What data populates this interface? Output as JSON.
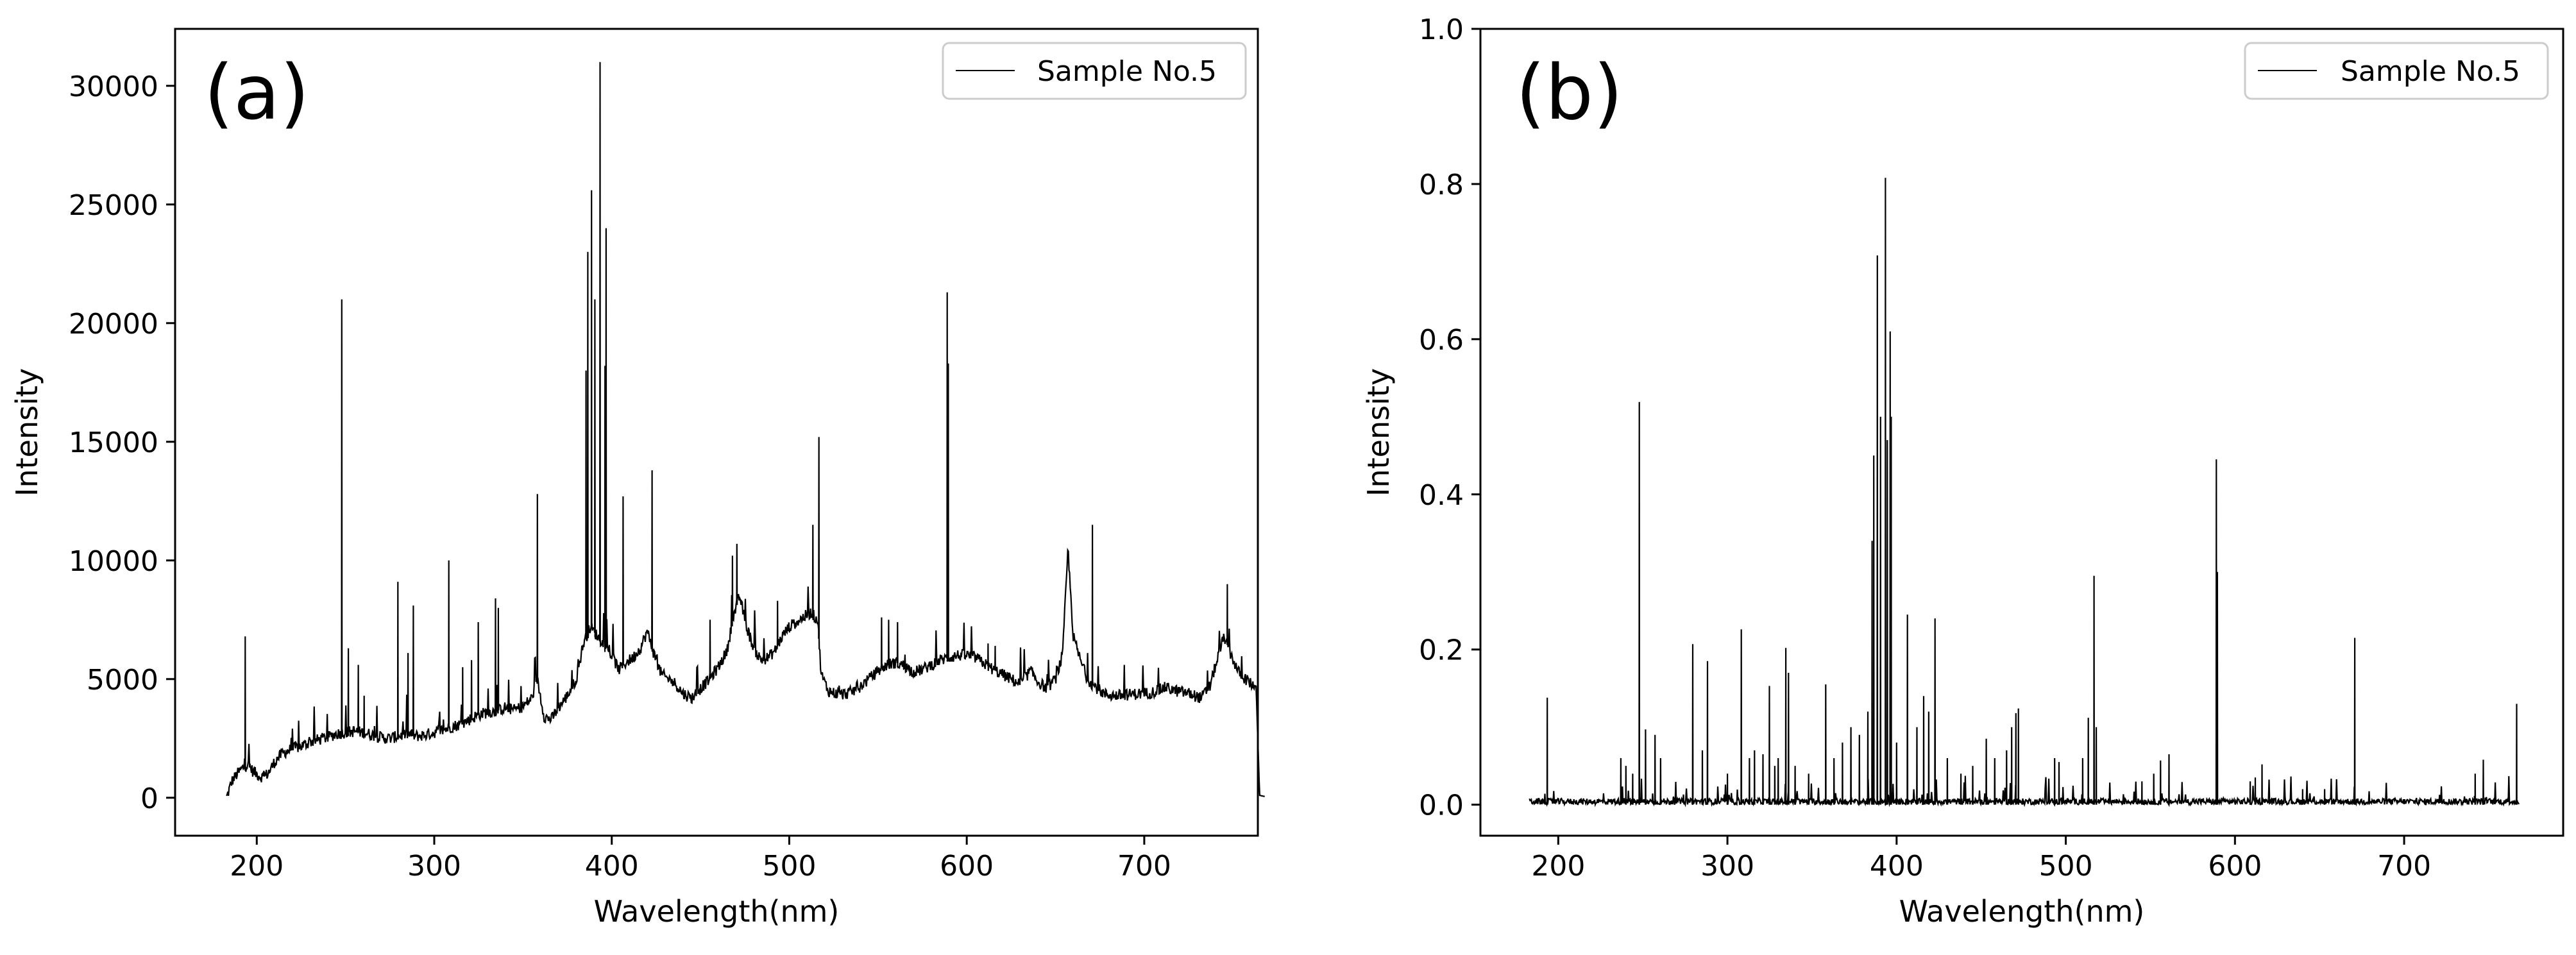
{
  "chart_data": [
    {
      "id": "a",
      "type": "line",
      "panel_label": "(a)",
      "xlabel": "Wavelength(nm)",
      "ylabel": "Intensity",
      "xlim": [
        154,
        764
      ],
      "ylim": [
        -1600,
        32400
      ],
      "xticks": [
        200,
        300,
        400,
        500,
        600,
        700
      ],
      "yticks": [
        0,
        5000,
        10000,
        15000,
        20000,
        25000,
        30000
      ],
      "ytick_labels": [
        "0",
        "5000",
        "10000",
        "15000",
        "20000",
        "25000",
        "30000"
      ],
      "legend": {
        "position": "top-right",
        "entries": [
          "Sample No.5"
        ]
      },
      "grid": false,
      "line_color": "#000000",
      "series": [
        {
          "name": "Sample No.5",
          "baseline": [
            [
              183,
              0
            ],
            [
              186,
              700
            ],
            [
              189,
              1000
            ],
            [
              192,
              1250
            ],
            [
              195,
              1400
            ],
            [
              198,
              1100
            ],
            [
              201,
              950
            ],
            [
              204,
              850
            ],
            [
              207,
              1100
            ],
            [
              210,
              1500
            ],
            [
              214,
              1850
            ],
            [
              218,
              2000
            ],
            [
              222,
              2100
            ],
            [
              226,
              2200
            ],
            [
              230,
              2350
            ],
            [
              235,
              2450
            ],
            [
              240,
              2550
            ],
            [
              245,
              2700
            ],
            [
              250,
              2750
            ],
            [
              255,
              2800
            ],
            [
              260,
              2750
            ],
            [
              265,
              2650
            ],
            [
              270,
              2550
            ],
            [
              275,
              2500
            ],
            [
              280,
              2600
            ],
            [
              285,
              2700
            ],
            [
              290,
              2600
            ],
            [
              295,
              2650
            ],
            [
              300,
              2750
            ],
            [
              305,
              2850
            ],
            [
              310,
              3000
            ],
            [
              315,
              3100
            ],
            [
              320,
              3300
            ],
            [
              325,
              3500
            ],
            [
              330,
              3600
            ],
            [
              335,
              3650
            ],
            [
              340,
              3800
            ],
            [
              345,
              3700
            ],
            [
              350,
              3850
            ],
            [
              355,
              4200
            ],
            [
              358,
              5000
            ],
            [
              362,
              3400
            ],
            [
              366,
              3300
            ],
            [
              370,
              3800
            ],
            [
              375,
              4300
            ],
            [
              380,
              5000
            ],
            [
              384,
              6500
            ],
            [
              388,
              7200
            ],
            [
              392,
              6800
            ],
            [
              396,
              6400
            ],
            [
              400,
              6000
            ],
            [
              404,
              5400
            ],
            [
              408,
              5700
            ],
            [
              412,
              5900
            ],
            [
              416,
              6300
            ],
            [
              420,
              7000
            ],
            [
              424,
              6000
            ],
            [
              428,
              5200
            ],
            [
              432,
              5000
            ],
            [
              436,
              4800
            ],
            [
              440,
              4400
            ],
            [
              445,
              4200
            ],
            [
              450,
              4600
            ],
            [
              455,
              5000
            ],
            [
              460,
              5500
            ],
            [
              465,
              6200
            ],
            [
              468,
              7500
            ],
            [
              472,
              8500
            ],
            [
              476,
              7200
            ],
            [
              480,
              6300
            ],
            [
              484,
              5800
            ],
            [
              488,
              5900
            ],
            [
              492,
              6200
            ],
            [
              496,
              6800
            ],
            [
              500,
              7200
            ],
            [
              504,
              7400
            ],
            [
              508,
              7600
            ],
            [
              512,
              7800
            ],
            [
              516,
              7500
            ],
            [
              518,
              5200
            ],
            [
              522,
              4500
            ],
            [
              526,
              4400
            ],
            [
              530,
              4350
            ],
            [
              535,
              4450
            ],
            [
              540,
              4700
            ],
            [
              545,
              5000
            ],
            [
              550,
              5350
            ],
            [
              555,
              5600
            ],
            [
              560,
              5700
            ],
            [
              565,
              5550
            ],
            [
              570,
              5300
            ],
            [
              575,
              5400
            ],
            [
              580,
              5600
            ],
            [
              585,
              5800
            ],
            [
              590,
              5900
            ],
            [
              595,
              6000
            ],
            [
              600,
              6000
            ],
            [
              605,
              5900
            ],
            [
              610,
              5650
            ],
            [
              615,
              5400
            ],
            [
              620,
              5200
            ],
            [
              625,
              5000
            ],
            [
              630,
              4800
            ],
            [
              636,
              5350
            ],
            [
              640,
              4900
            ],
            [
              645,
              4600
            ],
            [
              650,
              5000
            ],
            [
              654,
              6000
            ],
            [
              657,
              10500
            ],
            [
              660,
              6800
            ],
            [
              664,
              5800
            ],
            [
              668,
              5000
            ],
            [
              672,
              4700
            ],
            [
              678,
              4350
            ],
            [
              685,
              4300
            ],
            [
              692,
              4350
            ],
            [
              700,
              4400
            ],
            [
              705,
              4450
            ],
            [
              712,
              4650
            ],
            [
              718,
              4500
            ],
            [
              725,
              4400
            ],
            [
              732,
              4200
            ],
            [
              737,
              4700
            ],
            [
              741,
              5800
            ],
            [
              745,
              6800
            ],
            [
              749,
              6000
            ],
            [
              753,
              5300
            ],
            [
              757,
              5000
            ],
            [
              760,
              4800
            ],
            [
              763,
              4700
            ],
            [
              765,
              100
            ],
            [
              768,
              50
            ]
          ],
          "peaks": [
            [
              193.5,
              6800
            ],
            [
              247.9,
              21000
            ],
            [
              251.6,
              6300
            ],
            [
              257.2,
              5600
            ],
            [
              260.5,
              4300
            ],
            [
              279.5,
              9100
            ],
            [
              285.2,
              6100
            ],
            [
              288.2,
              8100
            ],
            [
              308.2,
              10000
            ],
            [
              316,
              5500
            ],
            [
              321,
              5800
            ],
            [
              324.8,
              7400
            ],
            [
              334.5,
              8400
            ],
            [
              336.1,
              8000
            ],
            [
              358.1,
              12800
            ],
            [
              385.5,
              18000
            ],
            [
              386.5,
              23000
            ],
            [
              388.6,
              25600
            ],
            [
              390.5,
              21000
            ],
            [
              393.4,
              31000
            ],
            [
              396.2,
              18200
            ],
            [
              396.8,
              24000
            ],
            [
              406.4,
              12700
            ],
            [
              422.7,
              13800
            ],
            [
              455.4,
              7500
            ],
            [
              468,
              10200
            ],
            [
              470.5,
              10700
            ],
            [
              493.4,
              8300
            ],
            [
              513.3,
              11500
            ],
            [
              516.7,
              15200
            ],
            [
              552,
              7600
            ],
            [
              556,
              7500
            ],
            [
              561,
              7400
            ],
            [
              589,
              21300
            ],
            [
              589.6,
              18300
            ],
            [
              612,
              6500
            ],
            [
              616,
              6400
            ],
            [
              670.8,
              11500
            ],
            [
              746.8,
              9000
            ]
          ]
        }
      ]
    },
    {
      "id": "b",
      "type": "line",
      "panel_label": "(b)",
      "xlabel": "Wavelength(nm)",
      "ylabel": "Intensity",
      "xlim": [
        154,
        794
      ],
      "ylim": [
        -0.04,
        1.0
      ],
      "xticks": [
        200,
        300,
        400,
        500,
        600,
        700
      ],
      "yticks": [
        0.0,
        0.2,
        0.4,
        0.6,
        0.8,
        1.0
      ],
      "ytick_labels": [
        "0.0",
        "0.2",
        "0.4",
        "0.6",
        "0.8",
        "1.0"
      ],
      "legend": {
        "position": "top-right",
        "entries": [
          "Sample No.5"
        ]
      },
      "grid": false,
      "line_color": "#000000",
      "series": [
        {
          "name": "Sample No.5",
          "x_range": [
            183,
            768
          ],
          "noise_level": 0.008,
          "peaks": [
            [
              193.5,
              0.138
            ],
            [
              237,
              0.06
            ],
            [
              240,
              0.05
            ],
            [
              244,
              0.04
            ],
            [
              247.9,
              0.519
            ],
            [
              251.6,
              0.097
            ],
            [
              257.2,
              0.09
            ],
            [
              260.5,
              0.06
            ],
            [
              279.5,
              0.207
            ],
            [
              285.2,
              0.07
            ],
            [
              288.2,
              0.185
            ],
            [
              300,
              0.04
            ],
            [
              308.2,
              0.226
            ],
            [
              313,
              0.06
            ],
            [
              316,
              0.07
            ],
            [
              321,
              0.065
            ],
            [
              324.8,
              0.153
            ],
            [
              328,
              0.05
            ],
            [
              330,
              0.06
            ],
            [
              334.5,
              0.202
            ],
            [
              336.1,
              0.17
            ],
            [
              340,
              0.05
            ],
            [
              348,
              0.04
            ],
            [
              358.1,
              0.155
            ],
            [
              363,
              0.06
            ],
            [
              368,
              0.08
            ],
            [
              373,
              0.1
            ],
            [
              378,
              0.09
            ],
            [
              383,
              0.12
            ],
            [
              385.5,
              0.34
            ],
            [
              386.5,
              0.45
            ],
            [
              388.6,
              0.708
            ],
            [
              390.5,
              0.5
            ],
            [
              393.4,
              0.808
            ],
            [
              394.5,
              0.47
            ],
            [
              396.2,
              0.61
            ],
            [
              396.8,
              0.5
            ],
            [
              400,
              0.08
            ],
            [
              406.4,
              0.245
            ],
            [
              412,
              0.1
            ],
            [
              416,
              0.14
            ],
            [
              419,
              0.12
            ],
            [
              422.7,
              0.24
            ],
            [
              430,
              0.06
            ],
            [
              438,
              0.04
            ],
            [
              445,
              0.05
            ],
            [
              453,
              0.085
            ],
            [
              458,
              0.06
            ],
            [
              465,
              0.07
            ],
            [
              468,
              0.1
            ],
            [
              470.5,
              0.118
            ],
            [
              472,
              0.124
            ],
            [
              493.4,
              0.06
            ],
            [
              496,
              0.055
            ],
            [
              510,
              0.06
            ],
            [
              513.3,
              0.112
            ],
            [
              516.7,
              0.295
            ],
            [
              518,
              0.1
            ],
            [
              545,
              0.03
            ],
            [
              552,
              0.04
            ],
            [
              556,
              0.057
            ],
            [
              561,
              0.065
            ],
            [
              589,
              0.445
            ],
            [
              589.6,
              0.3
            ],
            [
              609,
              0.03
            ],
            [
              612,
              0.035
            ],
            [
              616,
              0.052
            ],
            [
              640,
              0.02
            ],
            [
              653,
              0.02
            ],
            [
              670.8,
              0.215
            ],
            [
              742,
              0.04
            ],
            [
              746.8,
              0.058
            ],
            [
              766.5,
              0.13
            ]
          ]
        }
      ]
    }
  ]
}
